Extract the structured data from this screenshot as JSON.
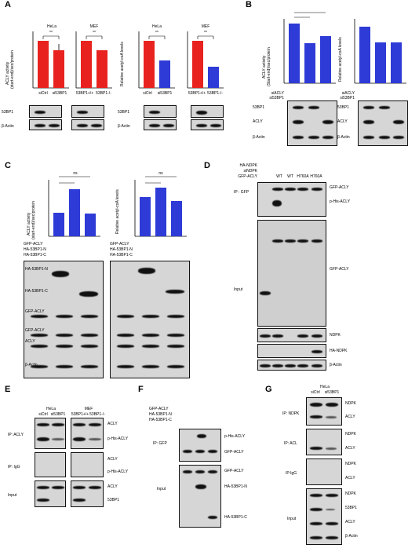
{
  "panels": {
    "A": {
      "label": "A",
      "bars": [
        {
          "group": "HeLa",
          "ylabel": "ACLY activity\n(start-end)/sec/protein",
          "ylim": [
            0,
            15
          ],
          "ticks": [
            "0",
            "5",
            "10",
            "15"
          ],
          "categories": [
            "siCtrl",
            "si53BP1"
          ],
          "values": [
            12.5,
            10
          ],
          "colors": [
            "#e8231f",
            "#e8231f"
          ],
          "sig": "**"
        },
        {
          "group": "MEF",
          "ylabel": "",
          "ylim": [
            0,
            25
          ],
          "ticks": [
            "0",
            "5",
            "10",
            "15",
            "20",
            "25"
          ],
          "categories": [
            "53BP1+/+",
            "53BP1-/-"
          ],
          "values": [
            21,
            17
          ],
          "colors": [
            "#e8231f",
            "#e8231f"
          ],
          "sig": "**"
        },
        {
          "group": "HeLa",
          "ylabel": "Relative acetyl-coA levels",
          "ylim": [
            0,
            1.2
          ],
          "ticks": [
            "0",
            "0.2",
            "0.4",
            "0.6",
            "0.8",
            "1.0",
            "1.2"
          ],
          "categories": [
            "siCtrl",
            "si53BP1"
          ],
          "values": [
            1.0,
            0.58
          ],
          "colors": [
            "#e8231f",
            "#2e3bd6"
          ],
          "sig": "**"
        },
        {
          "group": "MEF",
          "ylabel": "",
          "ylim": [
            0,
            1.2
          ],
          "ticks": [
            "0",
            "0.2",
            "0.4",
            "0.6",
            "0.8",
            "1.0",
            "1.2"
          ],
          "categories": [
            "53BP1+/+",
            "53BP1-/-"
          ],
          "values": [
            1.0,
            0.45
          ],
          "colors": [
            "#e8231f",
            "#2e3bd6"
          ],
          "sig": "**"
        }
      ],
      "blot_labels_left": [
        "53BP1",
        "β-Actin"
      ],
      "blot_labels_right": [
        "53BP1",
        "β-Actin"
      ]
    },
    "B": {
      "label": "B",
      "bars": [
        {
          "ylabel": "ACLY activity\n(Start-end)/sec/protein",
          "ylim": [
            0,
            8
          ],
          "ticks": [
            "0",
            "1",
            "2",
            "3",
            "4",
            "5",
            "6",
            "7",
            "8"
          ],
          "values": [
            7.4,
            5.0,
            5.8
          ],
          "sig": [
            "**",
            "**"
          ]
        },
        {
          "ylabel": "Relative acetyl-coA levels",
          "ylim": [
            0,
            1.2
          ],
          "ticks": [
            "0",
            "0.2",
            "0.4",
            "0.6",
            "0.8",
            "1.0",
            "1.2"
          ],
          "values": [
            1.0,
            0.72,
            0.72
          ],
          "sig": [
            "**",
            "**"
          ]
        }
      ],
      "rows": [
        {
          "name": "siACLY",
          "marks": [
            "-",
            "+",
            "-"
          ]
        },
        {
          "name": "si53BP1",
          "marks": [
            "-",
            "-",
            "+"
          ]
        }
      ],
      "blot_labels": [
        "53BP1",
        "ACLY",
        "β-Actin"
      ]
    },
    "C": {
      "label": "C",
      "bars": [
        {
          "ylabel": "ACLY activity\n(start-end)/sec/protein",
          "ylim": [
            0,
            70
          ],
          "ticks": [
            "0",
            "10",
            "20",
            "30",
            "40",
            "50",
            "60",
            "70"
          ],
          "values": [
            28,
            57,
            27
          ],
          "sig": [
            "**",
            "ns"
          ]
        },
        {
          "ylabel": "Relative acetyl-coA levels",
          "ylim": [
            0,
            1.4
          ],
          "ticks": [
            "0",
            "0.2",
            "0.4",
            "0.6",
            "0.8",
            "1.0",
            "1.2",
            "1.4"
          ],
          "values": [
            1.0,
            1.25,
            0.9
          ],
          "sig": [
            "**",
            "ns"
          ]
        }
      ],
      "rows": [
        {
          "name": "GFP-ACLY",
          "marks": [
            "+",
            "+",
            "+"
          ]
        },
        {
          "name": "HA-53BP1-N",
          "marks": [
            "-",
            "+",
            "-"
          ]
        },
        {
          "name": "HA-53BP1-C",
          "marks": [
            "-",
            "-",
            "+"
          ]
        }
      ],
      "blot_labels": [
        "HA-53BP1-N",
        "HA-53BP1-C",
        "GFP-ACLY",
        "GFP-ACLY",
        "ACLY",
        "β-Actin"
      ]
    },
    "D": {
      "label": "D",
      "rows": [
        {
          "name": "HA-NDPK",
          "marks": [
            "-",
            "-",
            "-",
            "-",
            "+"
          ]
        },
        {
          "name": "siNDPK",
          "marks": [
            "-",
            "-",
            "+",
            "-",
            "-"
          ]
        },
        {
          "name": "GFP-ACLY",
          "marks": [
            "-",
            "WT",
            "WT",
            "H760A",
            "H760A"
          ]
        }
      ],
      "ip_label": "IP : GFP",
      "input_label": "Input",
      "blot_labels": [
        "GFP-ACLY",
        "p-His-ACLY",
        "GFP-ACLY",
        "NDPK",
        "HA-NDPK",
        "β-Actin"
      ]
    },
    "E": {
      "label": "E",
      "headers": [
        "HeLa",
        "MEF"
      ],
      "lanes": [
        "siCtrl",
        "si53BP1",
        "53BP1+/+",
        "53BP1-/-"
      ],
      "sections": [
        "IP: ACLY",
        "IP: IgG",
        "Input"
      ],
      "blot_labels": [
        "ACLY",
        "p-His-ACLY",
        "ACLY",
        "p-His-ACLY",
        "ACLY",
        "53BP1"
      ]
    },
    "F": {
      "label": "F",
      "rows": [
        {
          "name": "GFP-ACLY",
          "marks": [
            "+",
            "+",
            "+"
          ]
        },
        {
          "name": "HA-53BP1-N",
          "marks": [
            "-",
            "+",
            "-"
          ]
        },
        {
          "name": "HA-53BP1-C",
          "marks": [
            "-",
            "-",
            "+"
          ]
        }
      ],
      "sections": [
        "IP: GFP",
        "Input"
      ],
      "blot_labels": [
        "p-His-ACLY",
        "GFP-ACLY",
        "GFP-ACLY",
        "HA-53BP1-N",
        "HA-53BP1-C"
      ]
    },
    "G": {
      "label": "G",
      "header": "HeLa",
      "lanes": [
        "siCtrl",
        "si53BP1"
      ],
      "sections": [
        "IP: NDPK",
        "IP: ACL",
        "IP:IgG",
        "Input"
      ],
      "blot_labels": [
        "NDPK",
        "ACLY",
        "NDPK",
        "ACLY",
        "NDPK",
        "ACLY",
        "NDPK",
        "53BP1",
        "ACLY",
        "β-Actin"
      ]
    }
  },
  "colors": {
    "red": "#e8231f",
    "blue": "#2e3bd6"
  }
}
